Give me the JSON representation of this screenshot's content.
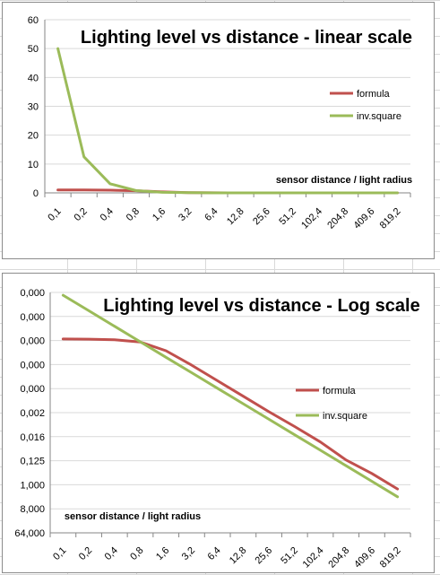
{
  "colors": {
    "sheet_grid": "#d9d9d9",
    "chart_border": "#8c8c8c",
    "gridline": "#d9d9d9",
    "axis": "#868686",
    "formula": "#c0504d",
    "inv_square": "#9bbb59"
  },
  "chart_data": [
    {
      "type": "line",
      "title": "Lighting level vs distance - linear scale",
      "xlabel": "sensor distance  / light radius",
      "ylabel": "",
      "ylim": [
        0,
        60
      ],
      "y_scale": "linear",
      "y_ticks": [
        "0",
        "10",
        "20",
        "30",
        "40",
        "50",
        "60"
      ],
      "categories": [
        "0,1",
        "0,2",
        "0,4",
        "0,8",
        "1,6",
        "3,2",
        "6,4",
        "12,8",
        "25,6",
        "51,2",
        "102,4",
        "204,8",
        "409,6",
        "819,2"
      ],
      "legend_position": "right",
      "grid": true,
      "series": [
        {
          "name": "formula",
          "color": "#c0504d",
          "values": [
            0.995,
            0.98,
            0.925,
            0.757,
            0.35,
            0.096,
            0.024,
            0.006,
            0.0015,
            0.0004,
            0.0001,
            2e-05,
            6e-06,
            1.5e-06
          ]
        },
        {
          "name": "inv.square",
          "color": "#9bbb59",
          "values": [
            50,
            12.5,
            3.125,
            0.78,
            0.195,
            0.049,
            0.0122,
            0.00305,
            0.00076,
            0.00019,
            4.8e-05,
            1.2e-05,
            3e-06,
            7.5e-07
          ]
        }
      ]
    },
    {
      "type": "line",
      "title": "Lighting level vs distance - Log scale",
      "xlabel": "sensor distance  / light radius",
      "ylabel": "",
      "y_scale": "log8",
      "ylim": [
        2.98e-08,
        64
      ],
      "y_ticks": [
        "64,000",
        "8,000",
        "1,000",
        "0,125",
        "0,016",
        "0,002",
        "0,000",
        "0,000",
        "0,000",
        "0,000",
        "0,000"
      ],
      "categories": [
        "0,1",
        "0,2",
        "0,4",
        "0,8",
        "1,6",
        "3,2",
        "6,4",
        "12,8",
        "25,6",
        "51,2",
        "102,4",
        "204,8",
        "409,6",
        "819,2"
      ],
      "legend_position": "right",
      "grid": true,
      "series": [
        {
          "name": "formula",
          "color": "#c0504d",
          "values": [
            0.995,
            0.98,
            0.925,
            0.757,
            0.35,
            0.096,
            0.024,
            0.006,
            0.0015,
            0.0004,
            0.0001,
            2e-05,
            6e-06,
            1.5e-06
          ]
        },
        {
          "name": "inv.square",
          "color": "#9bbb59",
          "values": [
            50,
            12.5,
            3.125,
            0.78,
            0.195,
            0.049,
            0.0122,
            0.00305,
            0.00076,
            0.00019,
            4.8e-05,
            1.2e-05,
            3e-06,
            7.5e-07
          ]
        }
      ]
    }
  ]
}
